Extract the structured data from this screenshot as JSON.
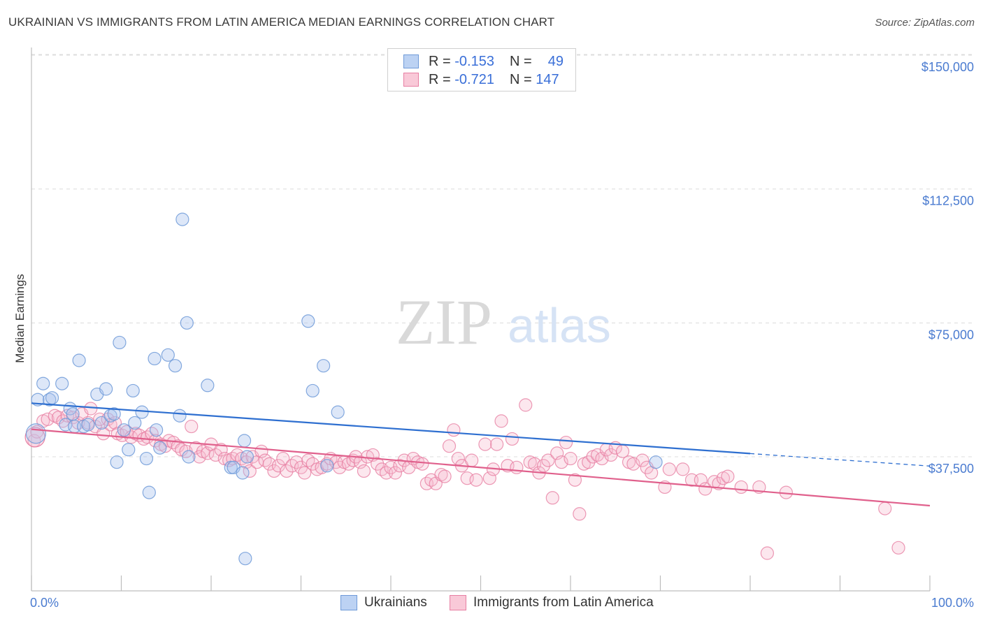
{
  "header": {
    "title": "UKRAINIAN VS IMMIGRANTS FROM LATIN AMERICA MEDIAN EARNINGS CORRELATION CHART",
    "source": "Source: ZipAtlas.com"
  },
  "watermark": {
    "zip": "ZIP",
    "atlas": "atlas"
  },
  "legend": {
    "rows": [
      {
        "r_label": "R =",
        "r_value": "-0.153",
        "n_label": "N =",
        "n_value": "49",
        "color": "#a9c4ee",
        "border": "#6f9ad8"
      },
      {
        "r_label": "R =",
        "r_value": "-0.721",
        "n_label": "N =",
        "n_value": "147",
        "color": "#f7b9cd",
        "border": "#e77fa3"
      }
    ]
  },
  "bottom_legend": {
    "items": [
      "Ukrainians",
      "Immigrants from Latin America"
    ]
  },
  "colors": {
    "blue_fill": "#a9c4ee",
    "blue_stroke": "#6f9ad8",
    "blue_line": "#2e6fd0",
    "pink_fill": "#f7b9cd",
    "pink_stroke": "#e77fa3",
    "pink_line": "#e0608c",
    "tick_blue": "#4a7bd0"
  },
  "chart_data": {
    "type": "scatter",
    "ylabel": "Median Earnings",
    "xlabel": "",
    "x_tick_labels": [
      "0.0%",
      "100.0%"
    ],
    "xlim": [
      0,
      100
    ],
    "ylim": [
      0,
      155000
    ],
    "y_ticks": [
      37500,
      75000,
      112500,
      150000
    ],
    "y_tick_labels": [
      "$37,500",
      "$75,000",
      "$112,500",
      "$150,000"
    ],
    "grid": "horizontal dashed",
    "series": [
      {
        "name": "Ukrainians",
        "trend": {
          "x0": 0,
          "y0": 52500,
          "x1": 80,
          "y1": 38400,
          "dashed_to_x": 100,
          "dashed_to_y": 34900
        },
        "points": [
          [
            0.5,
            44000
          ],
          [
            0.7,
            53500
          ],
          [
            1.3,
            58000
          ],
          [
            2.0,
            53500
          ],
          [
            2.3,
            54000
          ],
          [
            3.4,
            58000
          ],
          [
            3.8,
            46500
          ],
          [
            4.3,
            51000
          ],
          [
            4.6,
            49500
          ],
          [
            4.8,
            46000
          ],
          [
            5.3,
            64500
          ],
          [
            5.8,
            46000
          ],
          [
            6.3,
            46500
          ],
          [
            7.3,
            55000
          ],
          [
            7.8,
            47000
          ],
          [
            8.3,
            56500
          ],
          [
            8.8,
            49000
          ],
          [
            9.2,
            49500
          ],
          [
            9.5,
            36000
          ],
          [
            9.8,
            69500
          ],
          [
            10.3,
            45000
          ],
          [
            10.8,
            39500
          ],
          [
            11.3,
            56000
          ],
          [
            11.5,
            47000
          ],
          [
            12.3,
            50000
          ],
          [
            12.8,
            37000
          ],
          [
            13.1,
            27500
          ],
          [
            13.7,
            65000
          ],
          [
            13.9,
            45000
          ],
          [
            14.3,
            40000
          ],
          [
            15.2,
            66000
          ],
          [
            16.0,
            63000
          ],
          [
            16.5,
            49000
          ],
          [
            16.8,
            104000
          ],
          [
            17.3,
            75000
          ],
          [
            17.5,
            37500
          ],
          [
            19.6,
            57500
          ],
          [
            22.2,
            34500
          ],
          [
            22.5,
            34500
          ],
          [
            23.5,
            33000
          ],
          [
            23.7,
            42000
          ],
          [
            23.8,
            9000
          ],
          [
            24.0,
            37500
          ],
          [
            30.8,
            75500
          ],
          [
            31.3,
            56000
          ],
          [
            32.5,
            63000
          ],
          [
            32.9,
            35000
          ],
          [
            34.1,
            50000
          ],
          [
            69.5,
            36000
          ]
        ]
      },
      {
        "name": "Immigrants from Latin America",
        "trend": {
          "x0": 0,
          "y0": 45200,
          "x1": 100,
          "y1": 23800
        },
        "points": [
          [
            0.3,
            42000
          ],
          [
            0.6,
            44500
          ],
          [
            1.3,
            47500
          ],
          [
            1.8,
            48000
          ],
          [
            2.6,
            49000
          ],
          [
            3.0,
            48500
          ],
          [
            3.5,
            47500
          ],
          [
            4.0,
            49000
          ],
          [
            4.6,
            48500
          ],
          [
            5.2,
            47000
          ],
          [
            5.6,
            49500
          ],
          [
            6.3,
            47000
          ],
          [
            6.6,
            51000
          ],
          [
            7.1,
            46000
          ],
          [
            7.6,
            48000
          ],
          [
            8.0,
            44000
          ],
          [
            8.5,
            48000
          ],
          [
            8.8,
            46500
          ],
          [
            9.3,
            47000
          ],
          [
            9.6,
            44000
          ],
          [
            10.1,
            43500
          ],
          [
            10.6,
            44500
          ],
          [
            11.1,
            43000
          ],
          [
            11.6,
            44000
          ],
          [
            12.0,
            43500
          ],
          [
            12.5,
            42500
          ],
          [
            12.9,
            43000
          ],
          [
            13.4,
            44000
          ],
          [
            13.8,
            42000
          ],
          [
            14.4,
            41000
          ],
          [
            14.9,
            40500
          ],
          [
            15.3,
            42000
          ],
          [
            15.8,
            41500
          ],
          [
            16.3,
            40500
          ],
          [
            16.7,
            39500
          ],
          [
            17.2,
            39000
          ],
          [
            17.8,
            46000
          ],
          [
            18.3,
            40000
          ],
          [
            18.7,
            37500
          ],
          [
            19.1,
            39000
          ],
          [
            19.6,
            38500
          ],
          [
            20.0,
            41000
          ],
          [
            20.5,
            38000
          ],
          [
            21.1,
            39500
          ],
          [
            21.5,
            37000
          ],
          [
            22.0,
            36500
          ],
          [
            22.4,
            37000
          ],
          [
            22.9,
            38000
          ],
          [
            23.4,
            37000
          ],
          [
            23.9,
            36000
          ],
          [
            24.3,
            33500
          ],
          [
            24.6,
            37500
          ],
          [
            25.1,
            36000
          ],
          [
            25.6,
            39000
          ],
          [
            26.0,
            36500
          ],
          [
            26.5,
            35500
          ],
          [
            27.0,
            33500
          ],
          [
            27.5,
            35000
          ],
          [
            28.0,
            37000
          ],
          [
            28.4,
            33500
          ],
          [
            29.0,
            35000
          ],
          [
            29.5,
            36000
          ],
          [
            30.0,
            34500
          ],
          [
            30.4,
            33000
          ],
          [
            30.8,
            36500
          ],
          [
            31.3,
            35500
          ],
          [
            31.8,
            34000
          ],
          [
            32.3,
            34500
          ],
          [
            32.9,
            35500
          ],
          [
            33.3,
            37000
          ],
          [
            33.9,
            36000
          ],
          [
            34.3,
            34500
          ],
          [
            34.8,
            36000
          ],
          [
            35.3,
            35500
          ],
          [
            35.8,
            36500
          ],
          [
            36.1,
            37500
          ],
          [
            36.6,
            36000
          ],
          [
            37.0,
            33500
          ],
          [
            37.4,
            37500
          ],
          [
            38.0,
            38000
          ],
          [
            38.5,
            35500
          ],
          [
            39.0,
            34000
          ],
          [
            39.5,
            33000
          ],
          [
            40.0,
            34500
          ],
          [
            40.5,
            33000
          ],
          [
            41.0,
            35000
          ],
          [
            41.5,
            36500
          ],
          [
            42.0,
            34500
          ],
          [
            42.5,
            37000
          ],
          [
            43.0,
            36000
          ],
          [
            43.5,
            35500
          ],
          [
            44.0,
            30000
          ],
          [
            44.5,
            31000
          ],
          [
            45.0,
            30000
          ],
          [
            45.6,
            32500
          ],
          [
            46.0,
            32000
          ],
          [
            46.5,
            40500
          ],
          [
            47.0,
            45000
          ],
          [
            47.5,
            37000
          ],
          [
            47.9,
            35000
          ],
          [
            48.5,
            31500
          ],
          [
            49.0,
            36500
          ],
          [
            49.5,
            31000
          ],
          [
            50.5,
            41000
          ],
          [
            51.0,
            31500
          ],
          [
            51.4,
            34000
          ],
          [
            51.8,
            41000
          ],
          [
            52.3,
            47500
          ],
          [
            53.0,
            35000
          ],
          [
            53.5,
            42500
          ],
          [
            54.0,
            34500
          ],
          [
            55.0,
            52000
          ],
          [
            55.5,
            36000
          ],
          [
            56.0,
            35500
          ],
          [
            56.5,
            33000
          ],
          [
            57.0,
            35000
          ],
          [
            57.5,
            36500
          ],
          [
            58.0,
            26000
          ],
          [
            58.5,
            38500
          ],
          [
            59.0,
            36000
          ],
          [
            59.5,
            41500
          ],
          [
            60.0,
            37000
          ],
          [
            60.5,
            31000
          ],
          [
            61.0,
            21500
          ],
          [
            61.5,
            35500
          ],
          [
            62.0,
            36000
          ],
          [
            62.5,
            37500
          ],
          [
            63.0,
            38000
          ],
          [
            63.5,
            37000
          ],
          [
            64.0,
            39500
          ],
          [
            64.5,
            38000
          ],
          [
            65.0,
            40000
          ],
          [
            65.8,
            39000
          ],
          [
            66.5,
            36000
          ],
          [
            67.0,
            35500
          ],
          [
            68.0,
            36500
          ],
          [
            68.5,
            34500
          ],
          [
            69.0,
            33000
          ],
          [
            70.5,
            29000
          ],
          [
            71.0,
            34000
          ],
          [
            72.5,
            34000
          ],
          [
            73.5,
            31000
          ],
          [
            74.5,
            31000
          ],
          [
            75.0,
            28500
          ],
          [
            76.0,
            30500
          ],
          [
            76.5,
            30000
          ],
          [
            77.0,
            31500
          ],
          [
            77.5,
            32000
          ],
          [
            79.0,
            29000
          ],
          [
            81.0,
            29000
          ],
          [
            84.0,
            27500
          ],
          [
            95.0,
            23000
          ],
          [
            81.9,
            10500
          ],
          [
            96.5,
            12000
          ]
        ]
      }
    ]
  }
}
